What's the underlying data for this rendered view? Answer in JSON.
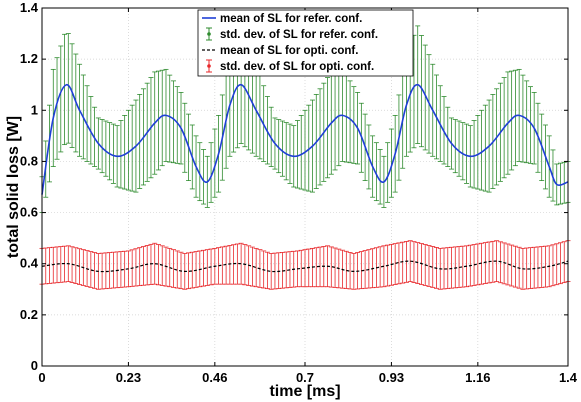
{
  "chart_data": {
    "type": "line",
    "title": "",
    "xlabel": "time [ms]",
    "ylabel": "total solid loss [W]",
    "xlim": [
      0,
      1.4
    ],
    "ylim": [
      0,
      1.4
    ],
    "x_ticks": [
      0,
      0.23,
      0.46,
      0.7,
      0.93,
      1.16,
      1.4
    ],
    "x_tick_labels": [
      "0",
      "0.23",
      "0.46",
      "0.7",
      "0.93",
      "1.16",
      "1.4"
    ],
    "y_ticks": [
      0,
      0.2,
      0.4,
      0.6,
      0.8,
      1,
      1.2,
      1.4
    ],
    "y_tick_labels": [
      "0",
      "0.2",
      "0.4",
      "0.6",
      "0.8",
      "1",
      "1.2",
      "1.4"
    ],
    "grid": true,
    "legend_position": "top-right",
    "series": [
      {
        "name": "mean of SL for refer. conf.",
        "color": "#1f3fd6",
        "style": "solid line",
        "x": [
          0,
          0.03,
          0.065,
          0.1,
          0.15,
          0.2,
          0.25,
          0.3,
          0.33,
          0.37,
          0.41,
          0.44,
          0.47,
          0.5,
          0.53,
          0.57,
          0.62,
          0.67,
          0.72,
          0.77,
          0.8,
          0.84,
          0.88,
          0.91,
          0.94,
          0.97,
          1.0,
          1.04,
          1.09,
          1.14,
          1.19,
          1.24,
          1.27,
          1.31,
          1.35,
          1.37,
          1.4
        ],
        "y": [
          0.67,
          0.97,
          1.1,
          1.0,
          0.87,
          0.82,
          0.86,
          0.95,
          0.98,
          0.93,
          0.78,
          0.72,
          0.83,
          1.02,
          1.1,
          1.0,
          0.87,
          0.82,
          0.86,
          0.95,
          0.98,
          0.93,
          0.78,
          0.72,
          0.83,
          1.02,
          1.1,
          1.0,
          0.87,
          0.82,
          0.86,
          0.95,
          0.98,
          0.93,
          0.78,
          0.71,
          0.72
        ]
      },
      {
        "name": "std. dev. of SL for refer. conf.",
        "color": "#2e8b2e",
        "style": "error bars (mean ± std)",
        "std": [
          0.07,
          0.19,
          0.22,
          0.18,
          0.1,
          0.12,
          0.18,
          0.2,
          0.18,
          0.14,
          0.12,
          0.1,
          0.15,
          0.2,
          0.23,
          0.18,
          0.1,
          0.12,
          0.18,
          0.2,
          0.18,
          0.14,
          0.12,
          0.1,
          0.15,
          0.2,
          0.23,
          0.18,
          0.1,
          0.12,
          0.18,
          0.2,
          0.18,
          0.14,
          0.12,
          0.08,
          0.08
        ]
      },
      {
        "name": "mean of SL for opti. conf.",
        "color": "#000000",
        "style": "dashed line",
        "x": [
          0,
          0.07,
          0.15,
          0.23,
          0.3,
          0.38,
          0.46,
          0.53,
          0.61,
          0.68,
          0.76,
          0.83,
          0.91,
          0.98,
          1.06,
          1.13,
          1.21,
          1.28,
          1.35,
          1.4
        ],
        "y": [
          0.39,
          0.4,
          0.37,
          0.38,
          0.4,
          0.37,
          0.39,
          0.4,
          0.37,
          0.38,
          0.39,
          0.37,
          0.39,
          0.41,
          0.38,
          0.39,
          0.41,
          0.38,
          0.39,
          0.41
        ]
      },
      {
        "name": "std. dev. of SL for opti. conf.",
        "color": "#e8282b",
        "style": "error bars (mean ± std)",
        "std": [
          0.07,
          0.07,
          0.07,
          0.07,
          0.08,
          0.07,
          0.07,
          0.08,
          0.07,
          0.07,
          0.08,
          0.07,
          0.08,
          0.08,
          0.08,
          0.08,
          0.08,
          0.08,
          0.08,
          0.08
        ]
      }
    ]
  }
}
